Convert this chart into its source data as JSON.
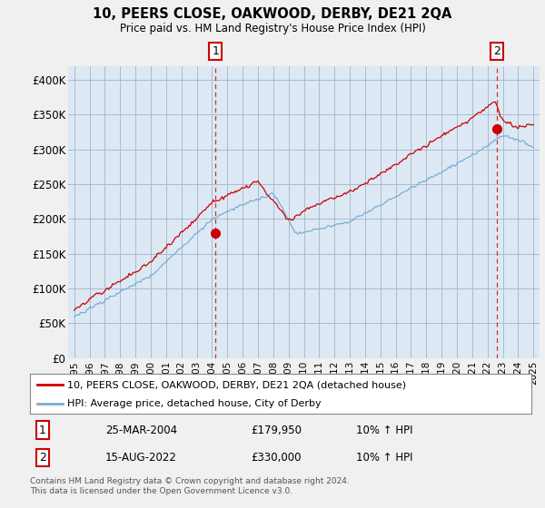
{
  "title": "10, PEERS CLOSE, OAKWOOD, DERBY, DE21 2QA",
  "subtitle": "Price paid vs. HM Land Registry's House Price Index (HPI)",
  "ylim": [
    0,
    420000
  ],
  "yticks": [
    0,
    50000,
    100000,
    150000,
    200000,
    250000,
    300000,
    350000,
    400000
  ],
  "ytick_labels": [
    "£0",
    "£50K",
    "£100K",
    "£150K",
    "£200K",
    "£250K",
    "£300K",
    "£350K",
    "£400K"
  ],
  "line1_color": "#cc0000",
  "line2_color": "#7aadd4",
  "background_color": "#f0f0f0",
  "plot_bg_color": "#dce9f5",
  "grid_color": "#aabbcc",
  "legend_label1": "10, PEERS CLOSE, OAKWOOD, DERBY, DE21 2QA (detached house)",
  "legend_label2": "HPI: Average price, detached house, City of Derby",
  "sale1_date": "25-MAR-2004",
  "sale1_price": "£179,950",
  "sale1_note": "10% ↑ HPI",
  "sale2_date": "15-AUG-2022",
  "sale2_price": "£330,000",
  "sale2_note": "10% ↑ HPI",
  "footnote": "Contains HM Land Registry data © Crown copyright and database right 2024.\nThis data is licensed under the Open Government Licence v3.0.",
  "sale1_year": 2004.23,
  "sale1_value": 179950,
  "sale2_year": 2022.62,
  "sale2_value": 330000
}
